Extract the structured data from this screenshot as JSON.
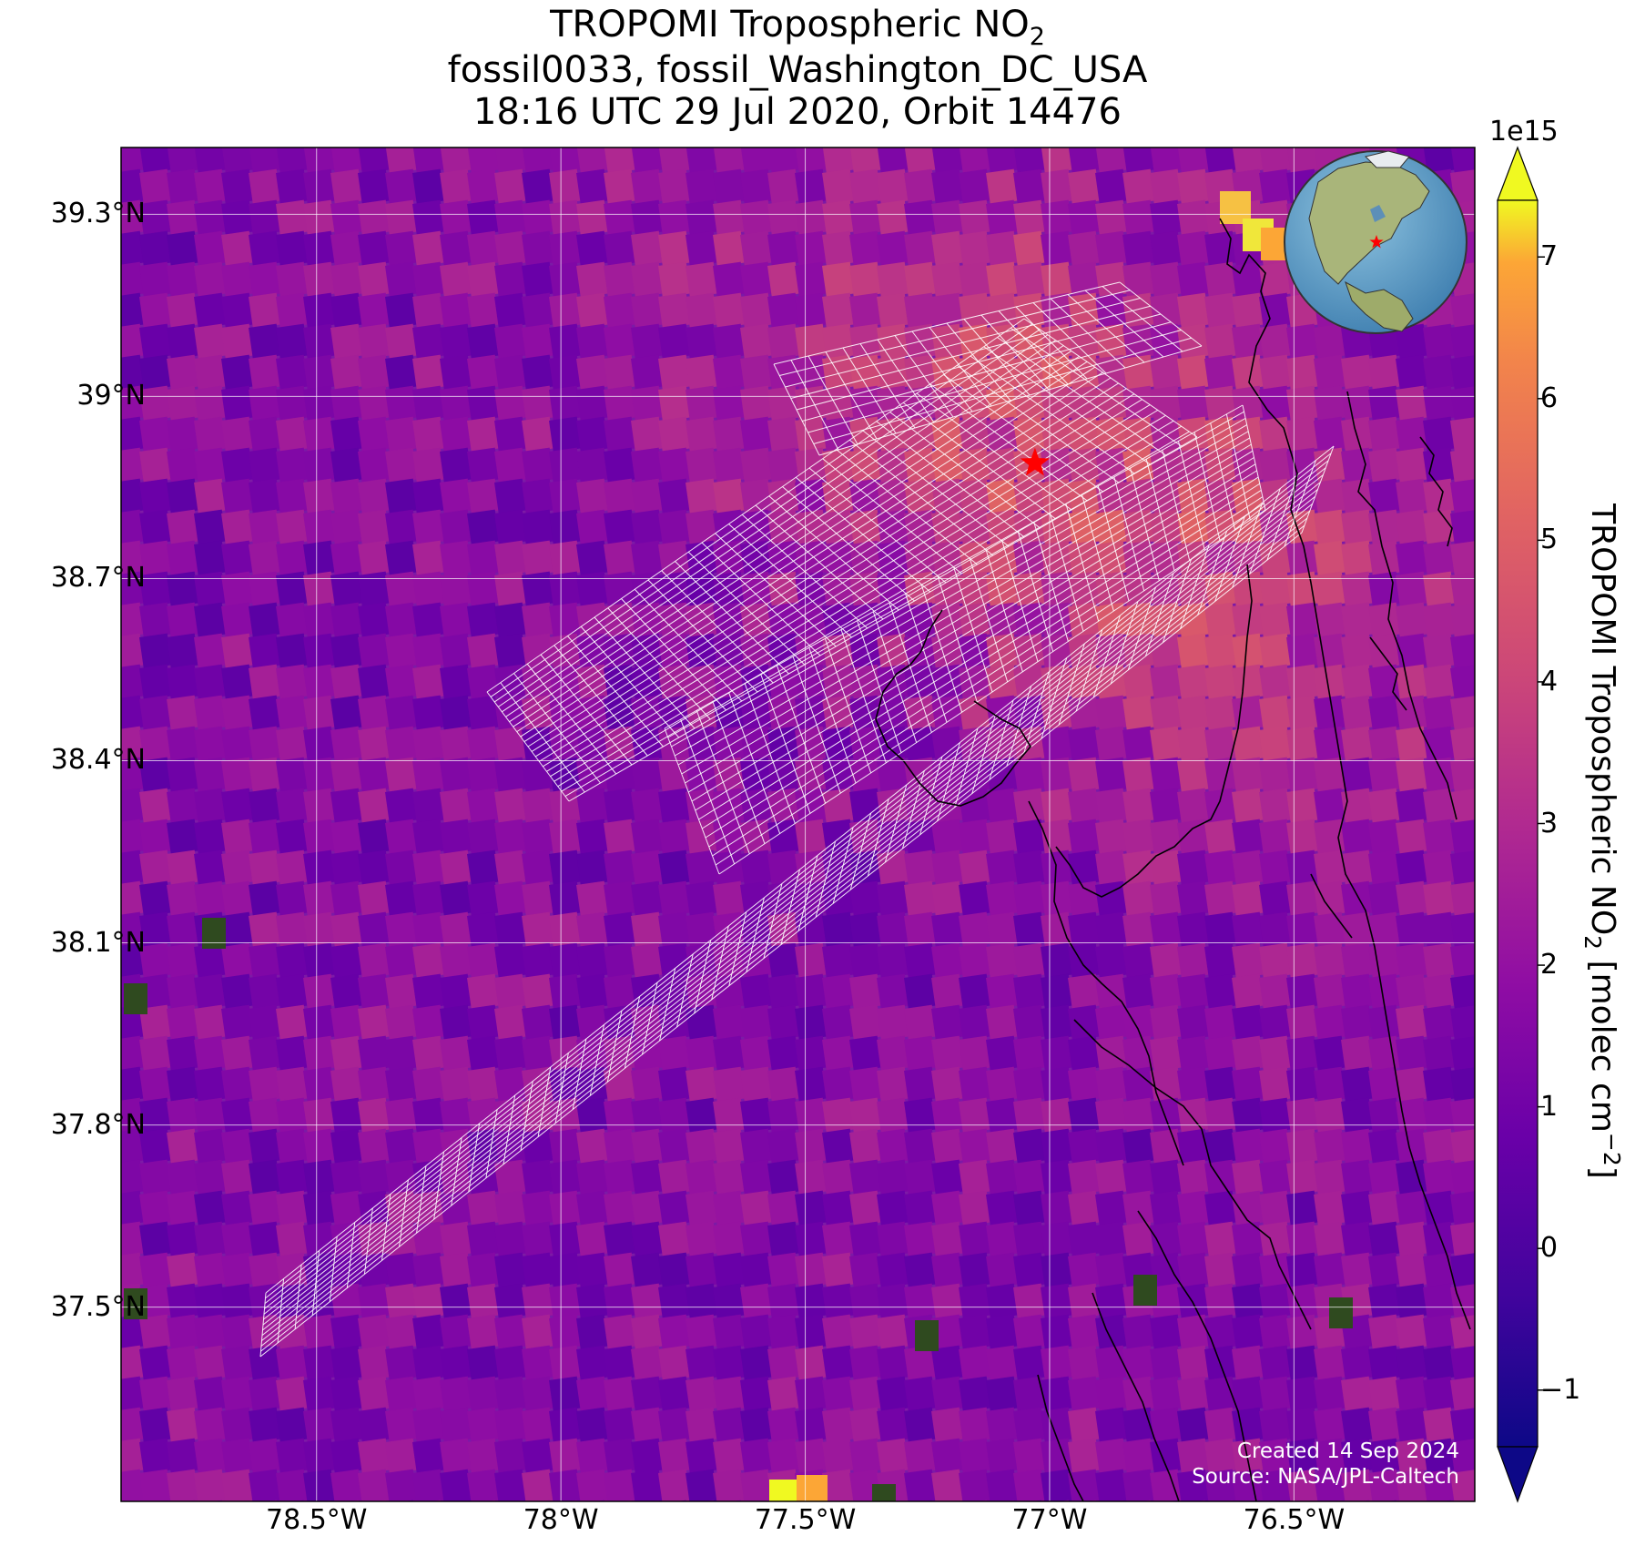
{
  "title": {
    "line1_prefix": "TROPOMI Tropospheric NO",
    "line1_sub": "2",
    "line2": "fossil0033, fossil_Washington_DC_USA",
    "line3": "18:16 UTC 29 Jul 2020, Orbit 14476"
  },
  "map": {
    "lon_range": [
      -78.9,
      -76.13
    ],
    "lat_range": [
      37.18,
      39.41
    ],
    "lat_ticks": [
      {
        "value": 39.3,
        "label": "39.3°N"
      },
      {
        "value": 39.0,
        "label": "39°N"
      },
      {
        "value": 38.7,
        "label": "38.7°N"
      },
      {
        "value": 38.4,
        "label": "38.4°N"
      },
      {
        "value": 38.1,
        "label": "38.1°N"
      },
      {
        "value": 37.8,
        "label": "37.8°N"
      },
      {
        "value": 37.5,
        "label": "37.5°N"
      }
    ],
    "lon_ticks": [
      {
        "value": -78.5,
        "label": "78.5°W"
      },
      {
        "value": -78.0,
        "label": "78°W"
      },
      {
        "value": -77.5,
        "label": "77.5°W"
      },
      {
        "value": -77.0,
        "label": "77°W"
      },
      {
        "value": -76.5,
        "label": "76.5°W"
      }
    ],
    "source_marker": {
      "lon": -77.03,
      "lat": 38.89,
      "symbol": "star",
      "color": "#ff0000"
    },
    "grid": true,
    "inset_globe": {
      "position": "top-right",
      "marker_color": "#ff0000"
    }
  },
  "colorbar": {
    "colormap": "plasma",
    "range": [
      -1.4,
      7.4
    ],
    "offset_text": "1e15",
    "ticks": [
      {
        "value": 7,
        "label": "7"
      },
      {
        "value": 6,
        "label": "6"
      },
      {
        "value": 5,
        "label": "5"
      },
      {
        "value": 4,
        "label": "4"
      },
      {
        "value": 3,
        "label": "3"
      },
      {
        "value": 2,
        "label": "2"
      },
      {
        "value": 1,
        "label": "1"
      },
      {
        "value": 0,
        "label": "0"
      },
      {
        "value": -1,
        "label": "−1"
      }
    ],
    "label_prefix": "TROPOMI Tropospheric NO",
    "label_sub": "2",
    "label_mid": " [molec cm",
    "label_sup": "−2",
    "label_end": "]",
    "extend": "both"
  },
  "credit": {
    "line1": "Created 14 Sep 2024",
    "line2": "Source: NASA/JPL-Caltech"
  }
}
